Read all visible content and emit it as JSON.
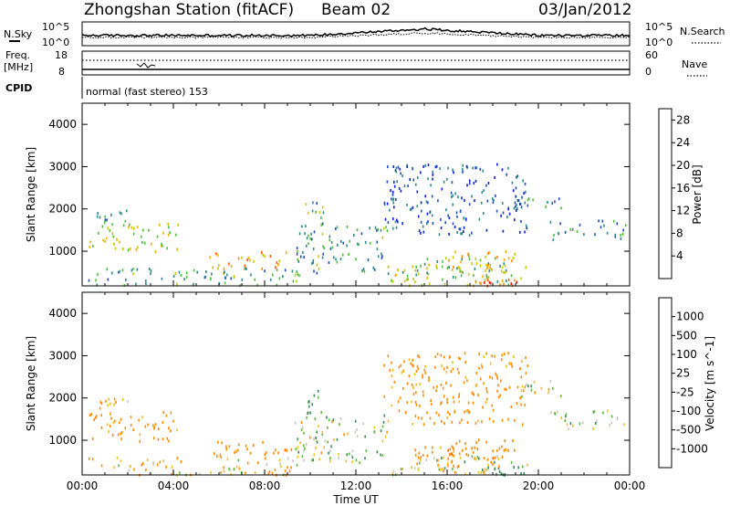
{
  "header": {
    "station": "Zhongshan Station (fitACF)",
    "beam": "Beam 02",
    "date": "03/Jan/2012"
  },
  "noise_panel": {
    "left_label": "N.Sky",
    "right_label": "N.Search",
    "left_ticks": [
      "10^5",
      "10^0"
    ],
    "right_ticks": [
      "10^5",
      "10^0"
    ]
  },
  "freq_panel": {
    "left_label_line1": "Freq.",
    "left_label_line2": "[MHz]",
    "right_label": "Nave",
    "left_ticks": [
      "18",
      "8"
    ],
    "right_ticks": [
      "60",
      "0"
    ]
  },
  "cpid": {
    "label": "CPID",
    "mode": "normal (fast stereo) 153"
  },
  "chart_data": [
    {
      "type": "heatmap",
      "title": "Power",
      "ylabel": "Slant Range [km]",
      "xlabel": "",
      "x_range_hours": [
        0,
        24
      ],
      "ylim": [
        180,
        4500
      ],
      "y_ticks": [
        "1000",
        "2000",
        "3000",
        "4000"
      ],
      "colorbar": {
        "label": "Power [dB]",
        "ticks": [
          "4",
          "8",
          "12",
          "16",
          "20",
          "24",
          "28"
        ],
        "range": [
          0,
          30
        ],
        "colors": [
          "#0a1fe6",
          "#1e52b8",
          "#2e8a8a",
          "#4fbf3a",
          "#c8c800",
          "#f0b000",
          "#ff8c00",
          "#ff5a00",
          "#ff1a00"
        ]
      },
      "echo_regions": [
        {
          "t": [
            0.2,
            9.5
          ],
          "r": [
            200,
            620
          ],
          "level": 9
        },
        {
          "t": [
            5.5,
            9.2
          ],
          "r": [
            600,
            1000
          ],
          "level": 20
        },
        {
          "t": [
            0.2,
            4.2
          ],
          "r": [
            1000,
            1700
          ],
          "level": 15
        },
        {
          "t": [
            0.6,
            2.0
          ],
          "r": [
            1700,
            2050
          ],
          "level": 8
        },
        {
          "t": [
            9.3,
            13.4
          ],
          "r": [
            500,
            1650
          ],
          "level": 9
        },
        {
          "t": [
            9.7,
            10.6
          ],
          "r": [
            1650,
            2200
          ],
          "level": 11
        },
        {
          "t": [
            13.5,
            19.5
          ],
          "r": [
            200,
            700
          ],
          "level": 14
        },
        {
          "t": [
            17.2,
            19.3
          ],
          "r": [
            200,
            400
          ],
          "level": 25
        },
        {
          "t": [
            14.5,
            18.5
          ],
          "r": [
            400,
            900
          ],
          "level": 12
        },
        {
          "t": [
            15.8,
            19.0
          ],
          "r": [
            600,
            1050
          ],
          "level": 18
        },
        {
          "t": [
            18.9,
            21.0
          ],
          "r": [
            2000,
            2450
          ],
          "level": 7
        },
        {
          "t": [
            20.5,
            23.8
          ],
          "r": [
            1300,
            1750
          ],
          "level": 8
        },
        {
          "t": [
            13.2,
            19.5
          ],
          "r": [
            1400,
            3100
          ],
          "level": 5
        }
      ]
    },
    {
      "type": "heatmap",
      "title": "Velocity",
      "ylabel": "Slant Range [km]",
      "xlabel": "Time UT",
      "x_ticks": [
        "00:00",
        "04:00",
        "08:00",
        "12:00",
        "16:00",
        "20:00",
        "00:00"
      ],
      "x_range_hours": [
        0,
        24
      ],
      "ylim": [
        180,
        4500
      ],
      "y_ticks": [
        "1000",
        "2000",
        "3000",
        "4000"
      ],
      "colorbar": {
        "label": "Velocity [m s^-1]",
        "ticks": [
          "1000",
          "500",
          "100",
          "25",
          "-25",
          "-100",
          "-500",
          "-1000"
        ],
        "colors": [
          "#2a3cc8",
          "#2a6e8c",
          "#3a8a5a",
          "#5abf3a",
          "#c8c8c0",
          "#f0c020",
          "#ff8c00",
          "#ff5a00",
          "#ff1a00"
        ]
      },
      "echo_regions": [
        {
          "t": [
            0.2,
            9.5
          ],
          "r": [
            200,
            620
          ],
          "v": -100
        },
        {
          "t": [
            5.5,
            9.2
          ],
          "r": [
            600,
            1000
          ],
          "v": -300
        },
        {
          "t": [
            0.2,
            4.2
          ],
          "r": [
            1000,
            1700
          ],
          "v": -200
        },
        {
          "t": [
            0.6,
            2.0
          ],
          "r": [
            1700,
            2050
          ],
          "v": -150
        },
        {
          "t": [
            9.3,
            13.4
          ],
          "r": [
            500,
            1650
          ],
          "v": 30
        },
        {
          "t": [
            9.7,
            10.6
          ],
          "r": [
            1650,
            2200
          ],
          "v": 150
        },
        {
          "t": [
            13.5,
            19.5
          ],
          "r": [
            200,
            700
          ],
          "v": 0
        },
        {
          "t": [
            17.2,
            19.3
          ],
          "r": [
            200,
            400
          ],
          "v": 300
        },
        {
          "t": [
            14.5,
            18.5
          ],
          "r": [
            400,
            900
          ],
          "v": -200
        },
        {
          "t": [
            15.8,
            19.0
          ],
          "r": [
            600,
            1050
          ],
          "v": -400
        },
        {
          "t": [
            18.9,
            21.0
          ],
          "r": [
            2000,
            2450
          ],
          "v": 0
        },
        {
          "t": [
            20.5,
            23.8
          ],
          "r": [
            1300,
            1750
          ],
          "v": 0
        },
        {
          "t": [
            13.2,
            19.5
          ],
          "r": [
            1400,
            3100
          ],
          "v": -200
        }
      ]
    }
  ]
}
